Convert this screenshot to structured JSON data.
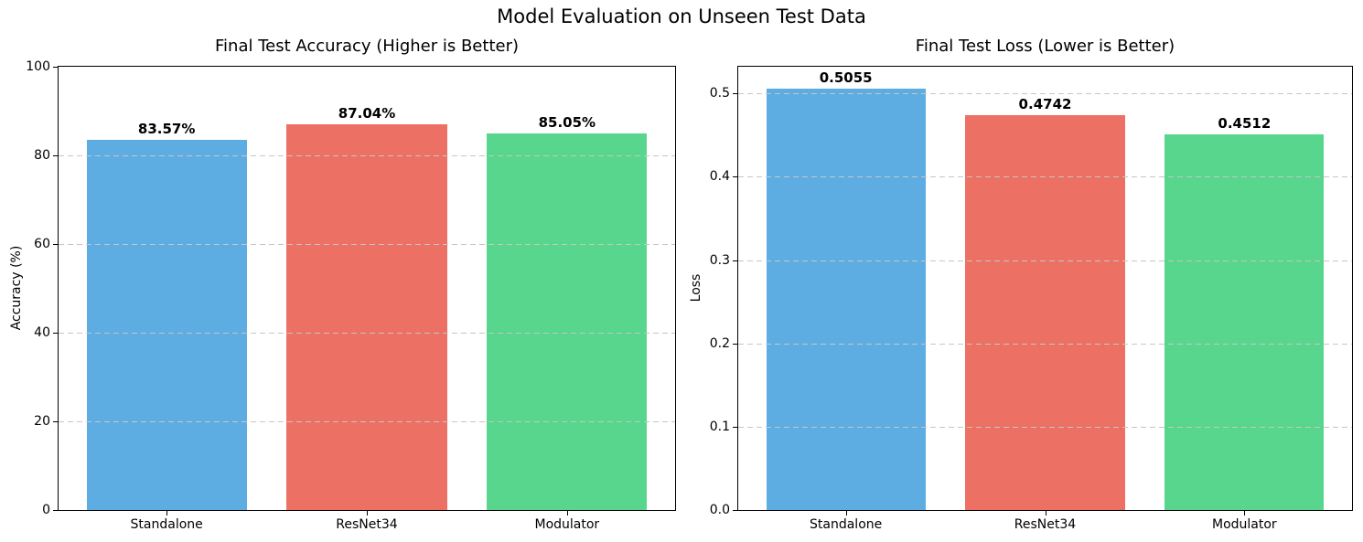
{
  "figure": {
    "suptitle": "Model Evaluation on Unseen Test Data",
    "background": "#ffffff",
    "palette": {
      "blue": "#5DADE2",
      "red": "#EC7063",
      "green": "#58D68D"
    }
  },
  "chart_data": [
    {
      "type": "bar",
      "title": "Final Test Accuracy (Higher is Better)",
      "xlabel": "",
      "ylabel": "Accuracy (%)",
      "categories": [
        "Standalone",
        "ResNet34",
        "Modulator"
      ],
      "values": [
        83.57,
        87.04,
        85.05
      ],
      "bar_labels": [
        "83.57%",
        "87.04%",
        "85.05%"
      ],
      "bar_colors": [
        "#5DADE2",
        "#EC7063",
        "#58D68D"
      ],
      "ylim": [
        0,
        100
      ],
      "yticks": [
        0,
        20,
        40,
        60,
        80,
        100
      ],
      "ytick_labels": [
        "0",
        "20",
        "40",
        "60",
        "80",
        "100"
      ],
      "grid": "horizontal-dashed",
      "legend": "none"
    },
    {
      "type": "bar",
      "title": "Final Test Loss (Lower is Better)",
      "xlabel": "",
      "ylabel": "Loss",
      "categories": [
        "Standalone",
        "ResNet34",
        "Modulator"
      ],
      "values": [
        0.5055,
        0.4742,
        0.4512
      ],
      "bar_labels": [
        "0.5055",
        "0.4742",
        "0.4512"
      ],
      "bar_colors": [
        "#5DADE2",
        "#EC7063",
        "#58D68D"
      ],
      "ylim": [
        0,
        0.532
      ],
      "yticks": [
        0,
        0.1,
        0.2,
        0.3,
        0.4,
        0.5
      ],
      "ytick_labels": [
        "0.0",
        "0.1",
        "0.2",
        "0.3",
        "0.4",
        "0.5"
      ],
      "grid": "horizontal-dashed",
      "legend": "none"
    }
  ]
}
